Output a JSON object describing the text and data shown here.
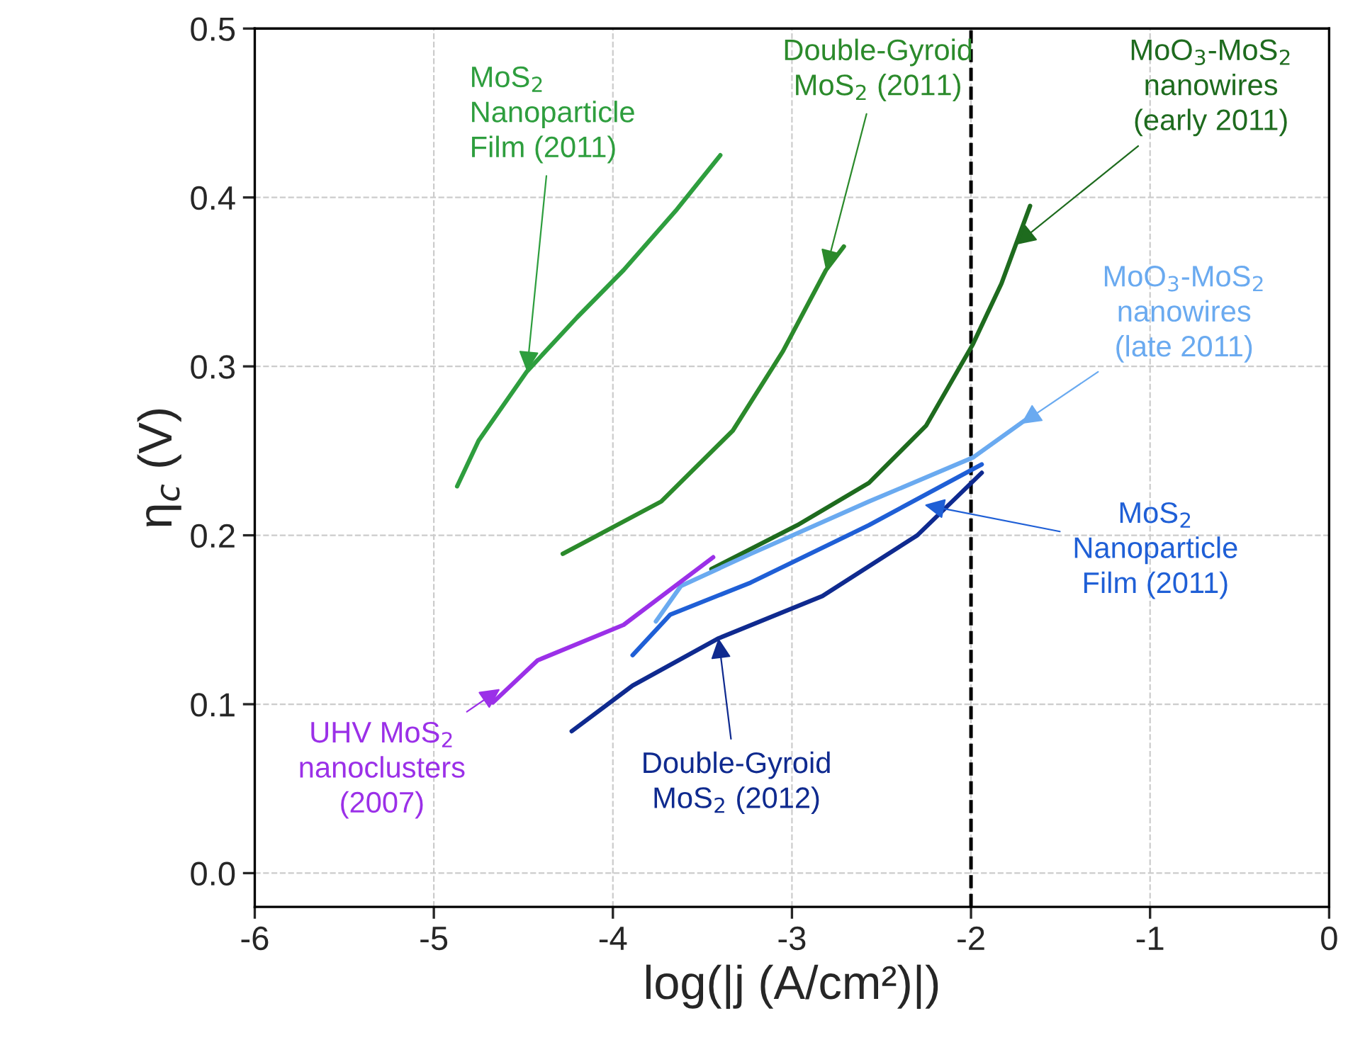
{
  "chart_data": {
    "type": "line",
    "xlabel": "log(|j (A/cm²)|)",
    "ylabel": "η$_{c}$ (V)",
    "xlim": [
      -6,
      0
    ],
    "xticks": [
      -6,
      -5,
      -4,
      -3,
      -2,
      -1,
      0
    ],
    "ylim": [
      -0.02,
      0.5
    ],
    "yticks": [
      {
        "value": 0,
        "label": "0.0"
      },
      0.1,
      0.2,
      0.3,
      0.4,
      0.5
    ],
    "grid": true,
    "line_style": "solid",
    "series": [
      {
        "color": "#2e9e3e",
        "x": [
          -4.87,
          -4.75,
          -4.48,
          -4.2,
          -3.94,
          -3.65,
          -3.4
        ],
        "values": [
          0.229,
          0.256,
          0.297,
          0.329,
          0.357,
          0.392,
          0.425
        ]
      },
      {
        "color": "#2b8a2b",
        "x": [
          -4.28,
          -3.73,
          -3.33,
          -3.05,
          -2.81,
          -2.71
        ],
        "values": [
          0.189,
          0.22,
          0.262,
          0.309,
          0.357,
          0.371
        ]
      },
      {
        "color": "#1e6b1e",
        "x": [
          -3.45,
          -2.97,
          -2.57,
          -2.25,
          -1.99,
          -1.83,
          -1.67
        ],
        "values": [
          0.18,
          0.206,
          0.231,
          0.265,
          0.313,
          0.349,
          0.395
        ]
      },
      {
        "color": "#6aaaf0",
        "x": [
          -3.76,
          -3.62,
          -3.23,
          -2.57,
          -1.99,
          -1.66
        ],
        "values": [
          0.149,
          0.17,
          0.189,
          0.22,
          0.246,
          0.271
        ]
      },
      {
        "color": "#1f5fd6",
        "x": [
          -3.89,
          -3.68,
          -3.23,
          -2.57,
          -1.94
        ],
        "values": [
          0.129,
          0.153,
          0.172,
          0.206,
          0.242
        ]
      },
      {
        "color": "#0f2a8f",
        "x": [
          -4.23,
          -3.89,
          -3.41,
          -2.83,
          -2.3,
          -1.94
        ],
        "values": [
          0.084,
          0.111,
          0.139,
          0.164,
          0.2,
          0.237
        ]
      },
      {
        "color": "#9b30e8",
        "x": [
          -4.67,
          -4.42,
          -3.94,
          -3.44
        ],
        "values": [
          0.101,
          0.126,
          0.147,
          0.187
        ]
      }
    ],
    "annotations": [
      {
        "text": "MoS$_{2}$\nNanoparticle\nFilm (2011)",
        "x": -4.48,
        "y": 0.297
      },
      {
        "text": "Double-Gyroid\nMoS$_{2}$ (2011)",
        "x": -2.81,
        "y": 0.357
      },
      {
        "text": "MoO$_{3}$-MoS$_{2}$\nnanowires\n(early 2011)",
        "x": -1.75,
        "y": 0.372
      },
      {
        "text": "MoO$_{3}$-MoS$_{2}$\nnanowires\n(late 2011)",
        "x": -1.72,
        "y": 0.266
      },
      {
        "text": "MoS$_{2}$\nNanoparticle\nFilm (2011)",
        "x": -2.26,
        "y": 0.218
      },
      {
        "text": "Double-Gyroid\nMoS$_{2}$ (2012)",
        "x": -3.41,
        "y": 0.139
      },
      {
        "text": "UHV MoS$_{2}$\nnanoclusters\n(2007)",
        "x": -4.63,
        "y": 0.109
      }
    ],
    "ref_lines": [
      {
        "axis": "x",
        "value": -2,
        "color": "#000000",
        "line_style": "dashed"
      }
    ]
  }
}
